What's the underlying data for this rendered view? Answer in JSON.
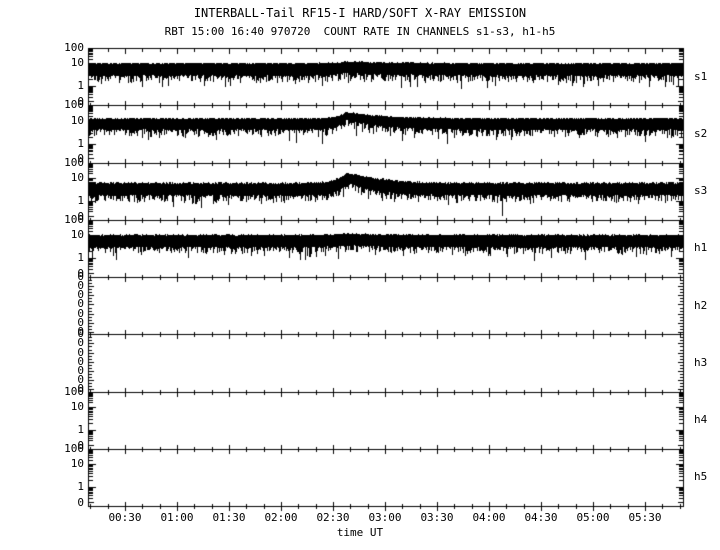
{
  "header": {
    "title": "INTERBALL-Tail RF15-I HARD/SOFT X-RAY EMISSION",
    "subtitle": "RBT 15:00 16:40 970720  COUNT RATE IN CHANNELS s1-s3, h1-h5"
  },
  "colors": {
    "foreground": "#000000",
    "background": "#ffffff"
  },
  "chart_data": {
    "type": "line",
    "title": "INTERBALL-Tail RF15-I HARD/SOFT X-RAY EMISSION",
    "subtitle": "RBT 15:00 16:40 970720  COUNT RATE IN CHANNELS s1-s3, h1-h5",
    "xlabel": "time UT",
    "ylabel": "count rate",
    "x_tick_labels": [
      "00:30",
      "01:00",
      "01:30",
      "02:00",
      "02:30",
      "03:00",
      "03:30",
      "04:00",
      "04:30",
      "05:00",
      "05:30"
    ],
    "x_tick_minutes": [
      30,
      60,
      90,
      120,
      150,
      180,
      210,
      240,
      270,
      300,
      330
    ],
    "x_minor_step_min": 10,
    "x_range_minutes": [
      8.7,
      351.9
    ],
    "grid": false,
    "legend": "channel labels at right of each panel",
    "panels": [
      {
        "id": "s1",
        "axis": "log",
        "y_tick_labels": [
          "100",
          "10",
          "1",
          "0"
        ],
        "has_data": true,
        "baseline_counts": 5.5,
        "flare": {
          "peak_time": "02:37",
          "peak_time_min": 157.5,
          "peak_counts": 7.2,
          "rise_min": 5,
          "decay_min": 20
        }
      },
      {
        "id": "s2",
        "axis": "log",
        "y_tick_labels": [
          "100",
          "10",
          "1",
          "0"
        ],
        "has_data": true,
        "baseline_counts": 7.5,
        "flare": {
          "peak_time": "02:37",
          "peak_time_min": 157.5,
          "peak_counts": 19,
          "rise_min": 4,
          "decay_min": 16
        }
      },
      {
        "id": "s3",
        "axis": "log",
        "y_tick_labels": [
          "100",
          "10",
          "1",
          "0"
        ],
        "has_data": true,
        "baseline_counts": 3.2,
        "flare": {
          "peak_time": "02:38",
          "peak_time_min": 158,
          "peak_counts": 11,
          "rise_min": 4,
          "decay_min": 12
        },
        "down_spike": {
          "time": "04:07",
          "time_min": 247.5,
          "min_counts": 0.08
        }
      },
      {
        "id": "h1",
        "axis": "log",
        "y_tick_labels": [
          "100",
          "10",
          "1",
          "0"
        ],
        "has_data": true,
        "baseline_counts": 5.5,
        "flare": {
          "peak_time": "02:37",
          "peak_time_min": 157.5,
          "peak_counts": 6.8,
          "rise_min": 5,
          "decay_min": 20
        }
      },
      {
        "id": "h2",
        "axis": "zero-range",
        "y_tick_labels": [
          "0",
          "0",
          "0",
          "0",
          "0",
          "0",
          "0"
        ],
        "has_data": false
      },
      {
        "id": "h3",
        "axis": "zero-range",
        "y_tick_labels": [
          "0",
          "0",
          "0",
          "0",
          "0",
          "0",
          "0"
        ],
        "has_data": false
      },
      {
        "id": "h4",
        "axis": "log",
        "y_tick_labels": [
          "100",
          "10",
          "1",
          "0"
        ],
        "has_data": false
      },
      {
        "id": "h5",
        "axis": "log",
        "y_tick_labels": [
          "100",
          "10",
          "1",
          "0"
        ],
        "has_data": false
      }
    ]
  }
}
